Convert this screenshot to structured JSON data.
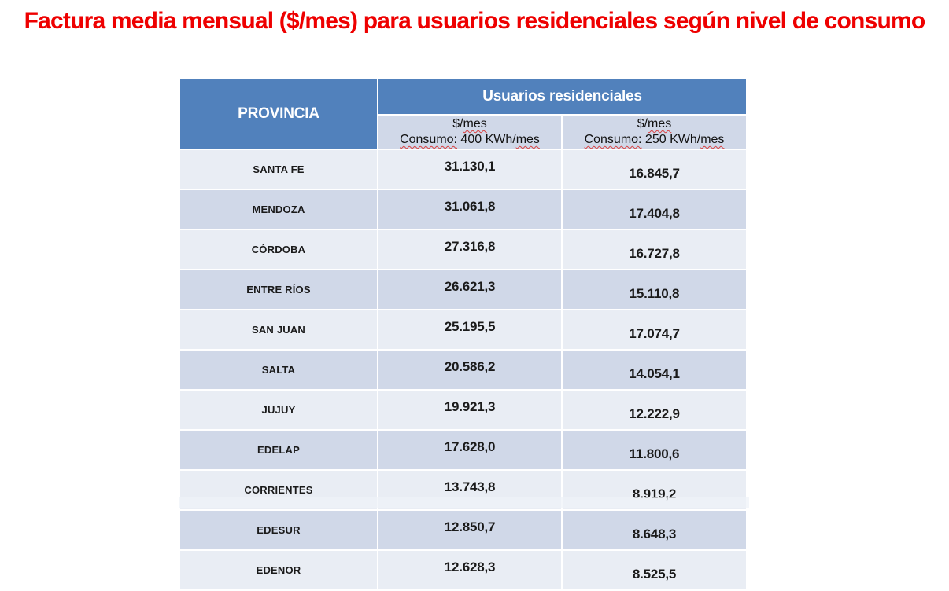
{
  "title": "Factura media mensual ($/mes) para usuarios residenciales según nivel de consumo",
  "colors": {
    "title_red": "#ee0000",
    "header_blue": "#5181BC",
    "band_light": "#E9EDF4",
    "band_dark": "#D0D8E8",
    "spellcheck_red": "#d84040"
  },
  "table": {
    "provincia_header": "PROVINCIA",
    "group_header": "Usuarios residenciales",
    "sub_headers": [
      {
        "unit_pre": "$/",
        "unit_wavy": "mes",
        "consumo_wavy": "Consumo:",
        "consumo_mid": " 400 KWh/",
        "consumo_tail_wavy": "mes"
      },
      {
        "unit_pre": "$/",
        "unit_wavy": "mes",
        "consumo_wavy": "Consumo:",
        "consumo_mid": " 250 KWh/",
        "consumo_tail_wavy": "mes"
      }
    ],
    "rows": [
      {
        "provincia": "SANTA FE",
        "v400": "31.130,1",
        "v250": "16.845,7"
      },
      {
        "provincia": "MENDOZA",
        "v400": "31.061,8",
        "v250": "17.404,8"
      },
      {
        "provincia": "CÓRDOBA",
        "v400": "27.316,8",
        "v250": "16.727,8"
      },
      {
        "provincia": "ENTRE RÍOS",
        "v400": "26.621,3",
        "v250": "15.110,8"
      },
      {
        "provincia": "SAN JUAN",
        "v400": "25.195,5",
        "v250": "17.074,7"
      },
      {
        "provincia": "SALTA",
        "v400": "20.586,2",
        "v250": "14.054,1"
      },
      {
        "provincia": "JUJUY",
        "v400": "19.921,3",
        "v250": "12.222,9"
      },
      {
        "provincia": "EDELAP",
        "v400": "17.628,0",
        "v250": "11.800,6"
      },
      {
        "provincia": "CORRIENTES",
        "v400": "13.743,8",
        "v250": "8.919,2"
      },
      {
        "provincia": "EDESUR",
        "v400": "12.850,7",
        "v250": "8.648,3"
      },
      {
        "provincia": "EDENOR",
        "v400": "12.628,3",
        "v250": "8.525,5"
      }
    ]
  }
}
